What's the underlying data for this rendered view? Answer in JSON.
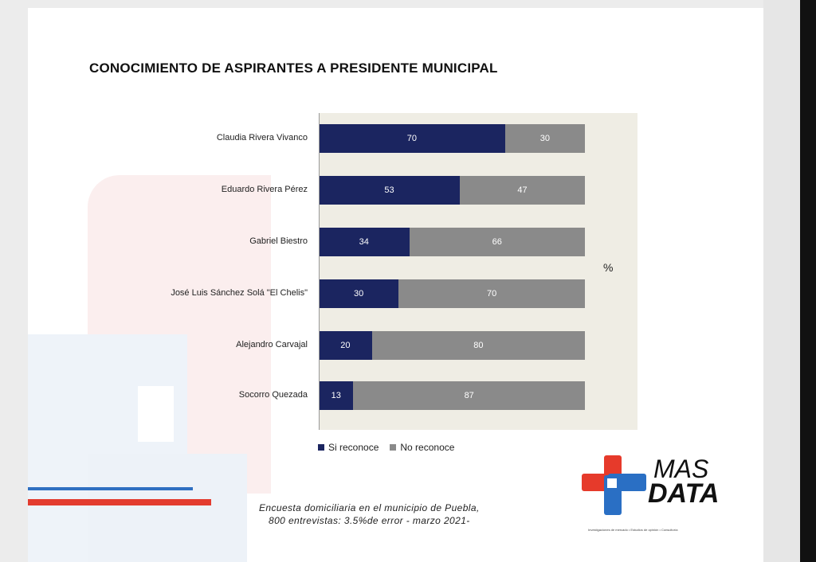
{
  "chart_data": {
    "type": "bar",
    "orientation": "horizontal",
    "stacked": true,
    "title": "CONOCIMIENTO DE ASPIRANTES A PRESIDENTE MUNICIPAL",
    "unit_label": "%",
    "categories": [
      "Claudia Rivera Vivanco",
      "Eduardo Rivera Pérez",
      "Gabriel Biestro",
      "José Luis Sánchez Solá \"El Chelis\"",
      "Alejandro Carvajal",
      "Socorro Quezada"
    ],
    "series": [
      {
        "name": "Si reconoce",
        "color": "#1b2560",
        "values": [
          70,
          53,
          34,
          30,
          20,
          13
        ]
      },
      {
        "name": "No reconoce",
        "color": "#8a8a8a",
        "values": [
          30,
          47,
          66,
          70,
          80,
          87
        ]
      }
    ],
    "xlim": [
      0,
      100
    ],
    "legend_position": "bottom-left"
  },
  "footnote": {
    "line1": "Encuesta domiciliaria en el municipio de Puebla,",
    "line2": "800 entrevistas: 3.5%de error - marzo 2021-"
  },
  "logo": {
    "line1": "MAS",
    "line2": "DATA",
    "tagline": "Investigaciones de mercado • Estudios de opinión • Consultoría"
  }
}
